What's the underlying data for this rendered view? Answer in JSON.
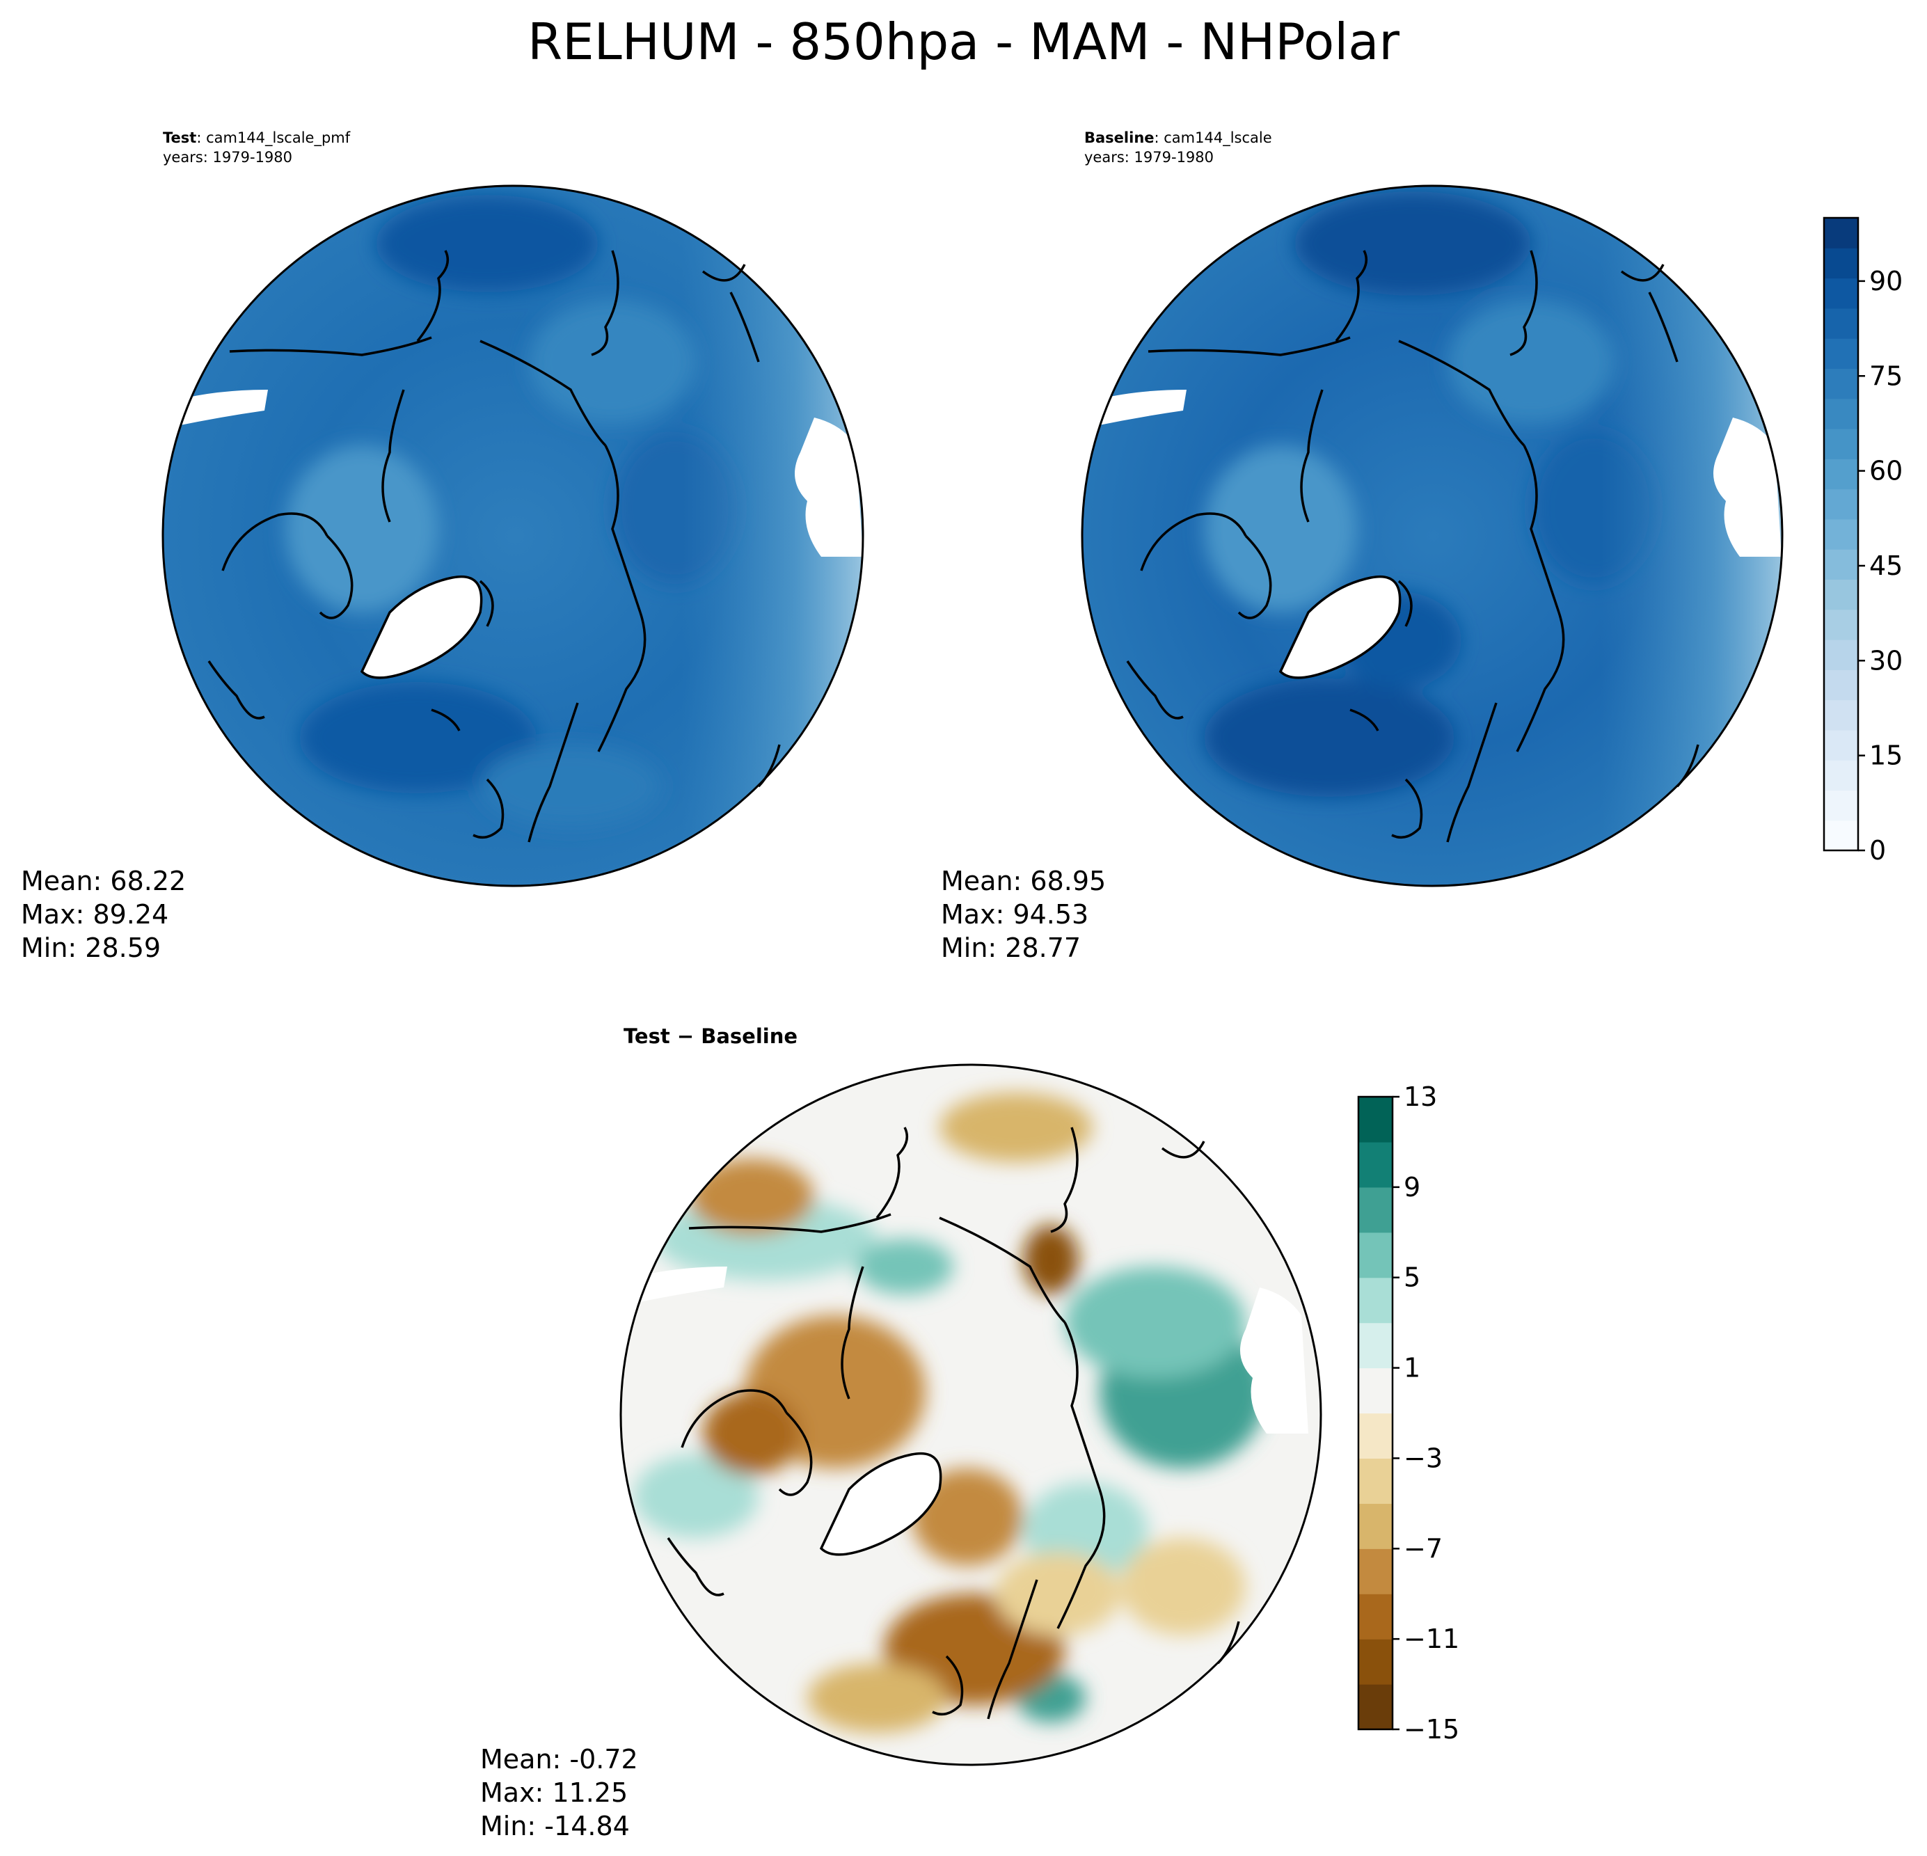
{
  "figure": {
    "title": "RELHUM - 850hpa - MAM - NHPolar"
  },
  "panels": {
    "test": {
      "label_bold": "Test",
      "label_case": ": cam144_lscale_pmf",
      "years": "years: 1979-1980",
      "mean": "Mean: 68.22",
      "max": "Max: 89.24",
      "min": "Min: 28.59"
    },
    "baseline": {
      "label_bold": "Baseline",
      "label_case": ": cam144_lscale",
      "years": "years: 1979-1980",
      "mean": "Mean: 68.95",
      "max": "Max: 94.53",
      "min": "Min: 28.77"
    },
    "difference": {
      "title": "Test − Baseline",
      "mean": "Mean: -0.72",
      "max": "Max: 11.25",
      "min": "Min: -14.84"
    }
  },
  "colorbars": {
    "relhum": {
      "colormap": "Blues",
      "range": [
        0,
        100
      ],
      "step": 5,
      "tick_values": [
        0,
        15,
        30,
        45,
        60,
        75,
        90
      ],
      "tick_labels": [
        "0",
        "15",
        "30",
        "45",
        "60",
        "75",
        "90"
      ],
      "colors": [
        "#f7fbff",
        "#eef5fc",
        "#e4eff9",
        "#dae8f6",
        "#d0e1f2",
        "#c4daee",
        "#b7d4ea",
        "#a8cee4",
        "#98c6df",
        "#85bcdc",
        "#73b2d8",
        "#63a8d3",
        "#549fcd",
        "#4594c7",
        "#3989c1",
        "#2d7dbb",
        "#2171b5",
        "#1764ab",
        "#0e58a2",
        "#084a91",
        "#083b7c"
      ]
    },
    "difference": {
      "colormap": "BrBG",
      "range": [
        -15,
        13
      ],
      "step": 2,
      "tick_values": [
        -15,
        -11,
        -7,
        -3,
        1,
        5,
        9,
        13
      ],
      "tick_labels": [
        "−15",
        "−11",
        "−7",
        "−3",
        "1",
        "5",
        "9",
        "13"
      ],
      "colors": [
        "#6a3d0a",
        "#8a510c",
        "#a9681c",
        "#c38a3f",
        "#d8b56b",
        "#e9d196",
        "#f5e7c6",
        "#f4f4f2",
        "#d6efec",
        "#a9ded6",
        "#74c4b8",
        "#3fa093",
        "#128075",
        "#016357"
      ]
    }
  }
}
